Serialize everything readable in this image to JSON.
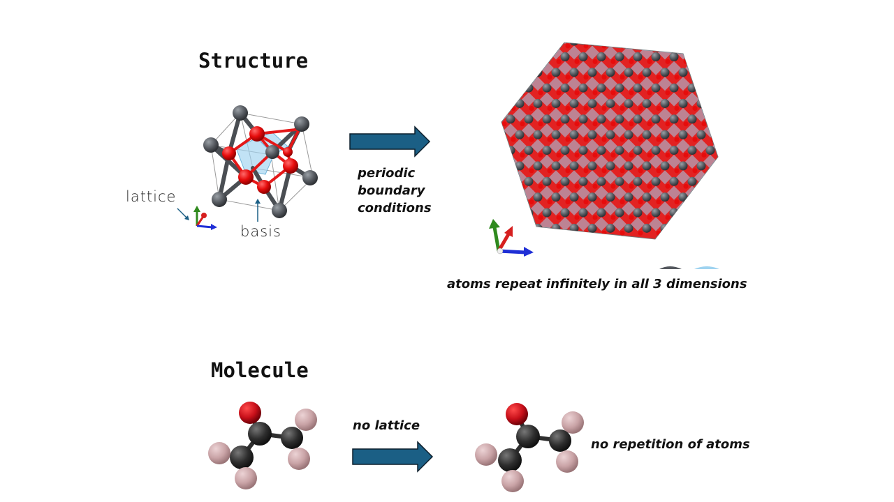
{
  "structure": {
    "title": "Structure",
    "annotation_lattice": "lattice",
    "annotation_basis": "basis",
    "arrow_label_lines": [
      "periodic",
      "boundary",
      "conditions"
    ],
    "result_caption": "atoms repeat infinitely in all 3 dimensions"
  },
  "molecule": {
    "title": "Molecule",
    "arrow_label": "no lattice",
    "result_caption": "no repetition of atoms"
  },
  "colors": {
    "arrow_fill": "#1b5f85",
    "arrow_stroke": "#0c1e2b",
    "lattice_atom": "#54595f",
    "basis_atom": "#e60c0c",
    "bond_red": "#e41818",
    "polyhedron": "#9fd3f0",
    "axis_x": "#1f2fd6",
    "axis_y": "#2f8a1e",
    "axis_z": "#d61f1f",
    "molecule_oxygen": "#c8101a",
    "molecule_carbon": "#2e2e2e",
    "molecule_hydrogen": "#c9a3a6"
  }
}
